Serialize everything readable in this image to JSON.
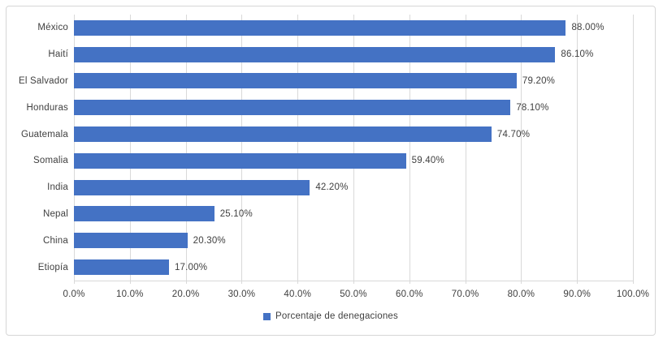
{
  "chart_data": {
    "type": "bar",
    "orientation": "horizontal",
    "title": "",
    "xlabel": "",
    "ylabel": "",
    "xlim": [
      0,
      100
    ],
    "grid": true,
    "legend_position": "bottom",
    "bar_color": "#4472C4",
    "categories": [
      "México",
      "Haití",
      "El Salvador",
      "Honduras",
      "Guatemala",
      "Somalia",
      "India",
      "Nepal",
      "China",
      "Etiopía"
    ],
    "values": [
      88.0,
      86.1,
      79.2,
      78.1,
      74.7,
      59.4,
      42.2,
      25.1,
      20.3,
      17.0
    ],
    "data_labels": [
      "88.00%",
      "86.10%",
      "79.20%",
      "78.10%",
      "74.70%",
      "59.40%",
      "42.20%",
      "25.10%",
      "20.30%",
      "17.00%"
    ],
    "x_ticks": [
      "0.0%",
      "10.0%",
      "20.0%",
      "30.0%",
      "40.0%",
      "50.0%",
      "60.0%",
      "70.0%",
      "80.0%",
      "90.0%",
      "100.0%"
    ],
    "x_tick_values": [
      0,
      10,
      20,
      30,
      40,
      50,
      60,
      70,
      80,
      90,
      100
    ],
    "series": [
      {
        "name": "Porcentaje de denegaciones",
        "values": [
          88.0,
          86.1,
          79.2,
          78.1,
          74.7,
          59.4,
          42.2,
          25.1,
          20.3,
          17.0
        ]
      }
    ],
    "legend": [
      {
        "label": "Porcentaje de denegaciones",
        "color": "#4472C4"
      }
    ]
  },
  "colors": {
    "bar": "#4472C4",
    "gridline": "#D9D9D9",
    "axis_line": "#D9D9D9",
    "text": "#404040",
    "frame_border": "#D6D6D6",
    "background": "#FFFFFF"
  }
}
